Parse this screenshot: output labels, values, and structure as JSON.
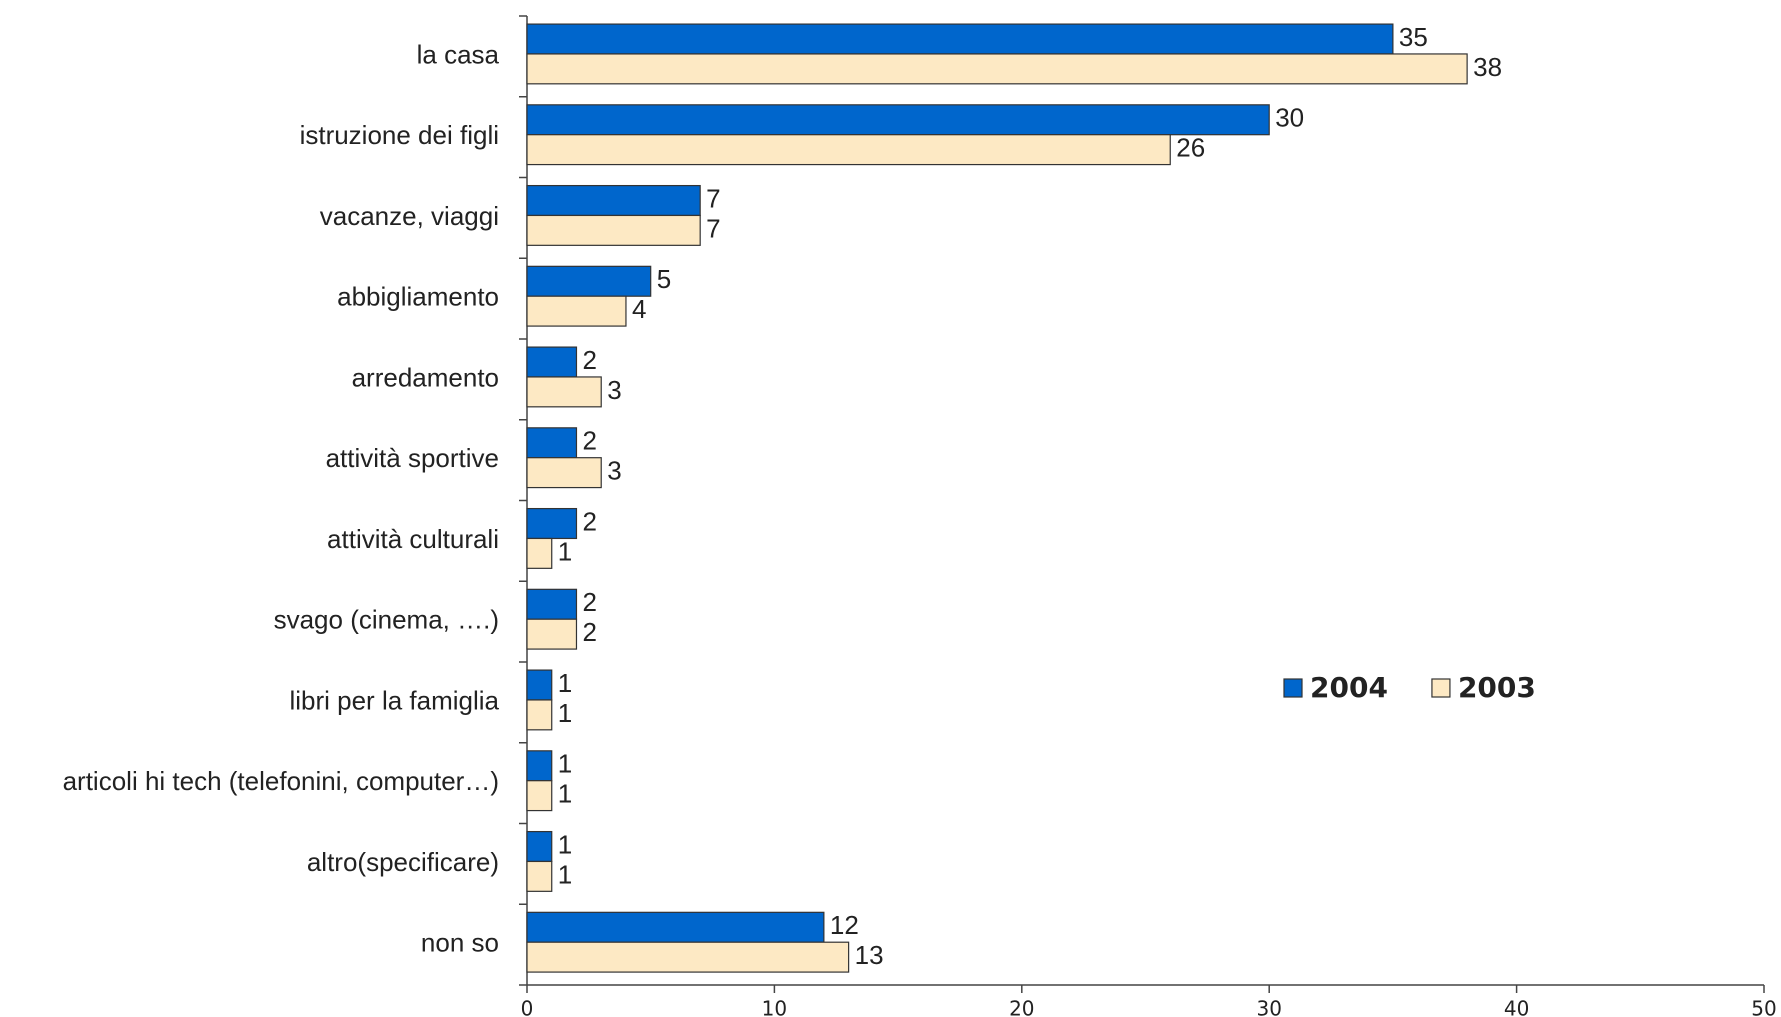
{
  "chart_data": {
    "type": "bar",
    "orientation": "horizontal",
    "categories": [
      "la casa",
      "istruzione dei figli",
      "vacanze, viaggi",
      "abbigliamento",
      "arredamento",
      "attività sportive",
      "attività culturali",
      "svago (cinema, ….)",
      "libri per la famiglia",
      "articoli hi tech (telefonini, computer…)",
      "altro(specificare)",
      "non so"
    ],
    "series": [
      {
        "name": "2004",
        "color": "#0066cc",
        "values": [
          35,
          30,
          7,
          5,
          2,
          2,
          2,
          2,
          1,
          1,
          1,
          12
        ]
      },
      {
        "name": "2003",
        "color": "#fde9c4",
        "values": [
          38,
          26,
          7,
          4,
          3,
          3,
          1,
          2,
          1,
          1,
          1,
          13
        ]
      }
    ],
    "xlim": [
      0,
      50
    ],
    "xticks": [
      0,
      10,
      20,
      30,
      40,
      50
    ],
    "legend": "right"
  }
}
